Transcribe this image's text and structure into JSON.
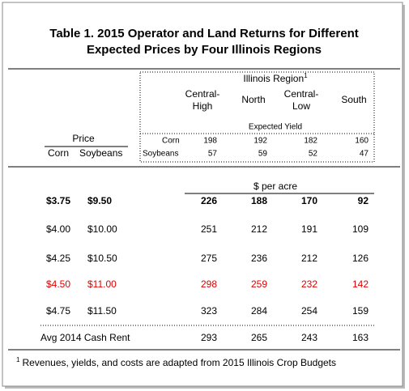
{
  "title": [
    "Table 1.  2015 Operator and Land Returns for Different",
    "Expected Prices by Four Illinois Regions"
  ],
  "region_header": {
    "text": "Illinois Region",
    "note": "1"
  },
  "regions": [
    [
      "Central-",
      "High"
    ],
    [
      "North"
    ],
    [
      "Central-",
      "Low"
    ],
    [
      "South"
    ]
  ],
  "expected_yield": {
    "label": "Expected Yield",
    "rows": [
      {
        "crop": "Corn",
        "values": [
          198,
          192,
          182,
          160
        ]
      },
      {
        "crop": "Soybeans",
        "values": [
          57,
          59,
          52,
          47
        ]
      }
    ]
  },
  "price_header": {
    "title": "Price",
    "corn": "Corn",
    "soybeans": "Soybeans"
  },
  "unit": "$ per acre",
  "rows": [
    {
      "corn": "$3.75",
      "soybeans": "$9.50",
      "values": [
        226,
        188,
        170,
        92
      ],
      "bold": true
    },
    {
      "corn": "$4.00",
      "soybeans": "$10.00",
      "values": [
        251,
        212,
        191,
        109
      ]
    },
    {
      "corn": "$4.25",
      "soybeans": "$10.50",
      "values": [
        275,
        236,
        212,
        126
      ]
    },
    {
      "corn": "$4.50",
      "soybeans": "$11.00",
      "values": [
        298,
        259,
        232,
        142
      ],
      "color": "#e00000"
    },
    {
      "corn": "$4.75",
      "soybeans": "$11.50",
      "values": [
        323,
        284,
        254,
        159
      ]
    }
  ],
  "cash_rent": {
    "label": "Avg 2014 Cash Rent",
    "values": [
      293,
      265,
      243,
      163
    ]
  },
  "footnote": {
    "note": "1",
    "text": "Revenues, yields, and costs are adapted from 2015 Illinois Crop Budgets"
  }
}
